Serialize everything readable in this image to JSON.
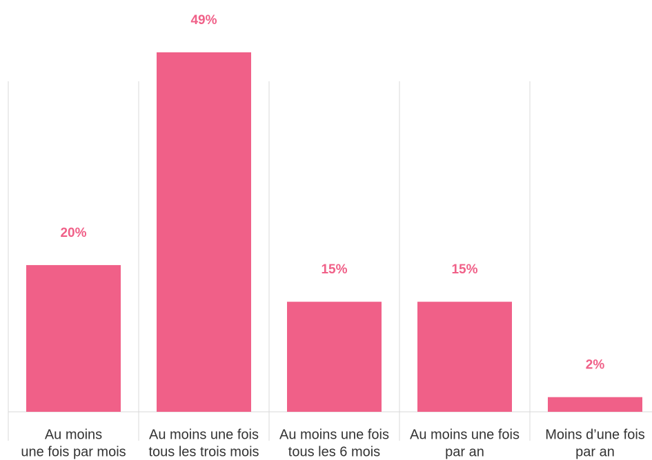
{
  "chart_data": {
    "type": "bar",
    "categories": [
      [
        "Au moins",
        "une fois par mois"
      ],
      [
        "Au moins une fois",
        "tous les trois mois"
      ],
      [
        "Au moins une fois",
        "tous les 6 mois"
      ],
      [
        "Au moins une fois",
        "par an"
      ],
      [
        "Moins d’une fois",
        "par an"
      ]
    ],
    "values": [
      20,
      49,
      15,
      15,
      2
    ],
    "value_labels": [
      "20%",
      "49%",
      "15%",
      "15%",
      "2%"
    ],
    "color": "#f06088"
  }
}
